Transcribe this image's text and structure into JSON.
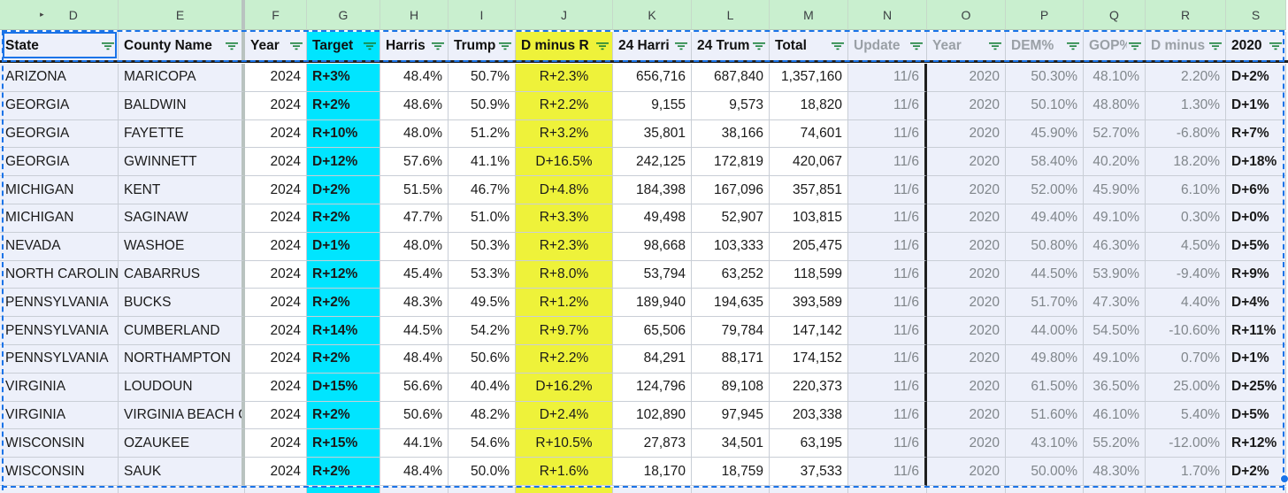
{
  "column_letters": [
    "D",
    "E",
    "F",
    "G",
    "H",
    "I",
    "J",
    "K",
    "L",
    "M",
    "N",
    "O",
    "P",
    "Q",
    "R",
    "S"
  ],
  "headers": [
    {
      "key": "state",
      "label": "State"
    },
    {
      "key": "county",
      "label": "County Name"
    },
    {
      "key": "year",
      "label": "Year"
    },
    {
      "key": "target",
      "label": "Target"
    },
    {
      "key": "harris",
      "label": "Harris"
    },
    {
      "key": "trump",
      "label": "Trump"
    },
    {
      "key": "dminusr",
      "label": "D minus R"
    },
    {
      "key": "harris24",
      "label": "24 Harri"
    },
    {
      "key": "trump24",
      "label": "24 Trum"
    },
    {
      "key": "total",
      "label": "Total"
    },
    {
      "key": "update",
      "label": "Update"
    },
    {
      "key": "year2020",
      "label": "Year"
    },
    {
      "key": "dem",
      "label": "DEM%"
    },
    {
      "key": "gop",
      "label": "GOP%"
    },
    {
      "key": "dminus2020",
      "label": "D minus"
    },
    {
      "key": "y2020",
      "label": "2020"
    }
  ],
  "rows": [
    [
      "ARIZONA",
      "MARICOPA",
      "2024",
      "R+3%",
      "48.4%",
      "50.7%",
      "R+2.3%",
      "656,716",
      "687,840",
      "1,357,160",
      "11/6",
      "2020",
      "50.30%",
      "48.10%",
      "2.20%",
      "D+2%"
    ],
    [
      "GEORGIA",
      "BALDWIN",
      "2024",
      "R+2%",
      "48.6%",
      "50.9%",
      "R+2.2%",
      "9,155",
      "9,573",
      "18,820",
      "11/6",
      "2020",
      "50.10%",
      "48.80%",
      "1.30%",
      "D+1%"
    ],
    [
      "GEORGIA",
      "FAYETTE",
      "2024",
      "R+10%",
      "48.0%",
      "51.2%",
      "R+3.2%",
      "35,801",
      "38,166",
      "74,601",
      "11/6",
      "2020",
      "45.90%",
      "52.70%",
      "-6.80%",
      "R+7%"
    ],
    [
      "GEORGIA",
      "GWINNETT",
      "2024",
      "D+12%",
      "57.6%",
      "41.1%",
      "D+16.5%",
      "242,125",
      "172,819",
      "420,067",
      "11/6",
      "2020",
      "58.40%",
      "40.20%",
      "18.20%",
      "D+18%"
    ],
    [
      "MICHIGAN",
      "KENT",
      "2024",
      "D+2%",
      "51.5%",
      "46.7%",
      "D+4.8%",
      "184,398",
      "167,096",
      "357,851",
      "11/6",
      "2020",
      "52.00%",
      "45.90%",
      "6.10%",
      "D+6%"
    ],
    [
      "MICHIGAN",
      "SAGINAW",
      "2024",
      "R+2%",
      "47.7%",
      "51.0%",
      "R+3.3%",
      "49,498",
      "52,907",
      "103,815",
      "11/6",
      "2020",
      "49.40%",
      "49.10%",
      "0.30%",
      "D+0%"
    ],
    [
      "NEVADA",
      "WASHOE",
      "2024",
      "D+1%",
      "48.0%",
      "50.3%",
      "R+2.3%",
      "98,668",
      "103,333",
      "205,475",
      "11/6",
      "2020",
      "50.80%",
      "46.30%",
      "4.50%",
      "D+5%"
    ],
    [
      "NORTH CAROLINA",
      "CABARRUS",
      "2024",
      "R+12%",
      "45.4%",
      "53.3%",
      "R+8.0%",
      "53,794",
      "63,252",
      "118,599",
      "11/6",
      "2020",
      "44.50%",
      "53.90%",
      "-9.40%",
      "R+9%"
    ],
    [
      "PENNSYLVANIA",
      "BUCKS",
      "2024",
      "R+2%",
      "48.3%",
      "49.5%",
      "R+1.2%",
      "189,940",
      "194,635",
      "393,589",
      "11/6",
      "2020",
      "51.70%",
      "47.30%",
      "4.40%",
      "D+4%"
    ],
    [
      "PENNSYLVANIA",
      "CUMBERLAND",
      "2024",
      "R+14%",
      "44.5%",
      "54.2%",
      "R+9.7%",
      "65,506",
      "79,784",
      "147,142",
      "11/6",
      "2020",
      "44.00%",
      "54.50%",
      "-10.60%",
      "R+11%"
    ],
    [
      "PENNSYLVANIA",
      "NORTHAMPTON",
      "2024",
      "R+2%",
      "48.4%",
      "50.6%",
      "R+2.2%",
      "84,291",
      "88,171",
      "174,152",
      "11/6",
      "2020",
      "49.80%",
      "49.10%",
      "0.70%",
      "D+1%"
    ],
    [
      "VIRGINIA",
      "LOUDOUN",
      "2024",
      "D+15%",
      "56.6%",
      "40.4%",
      "D+16.2%",
      "124,796",
      "89,108",
      "220,373",
      "11/6",
      "2020",
      "61.50%",
      "36.50%",
      "25.00%",
      "D+25%"
    ],
    [
      "VIRGINIA",
      "VIRGINIA BEACH CITY",
      "2024",
      "R+2%",
      "50.6%",
      "48.2%",
      "D+2.4%",
      "102,890",
      "97,945",
      "203,338",
      "11/6",
      "2020",
      "51.60%",
      "46.10%",
      "5.40%",
      "D+5%"
    ],
    [
      "WISCONSIN",
      "OZAUKEE",
      "2024",
      "R+15%",
      "44.1%",
      "54.6%",
      "R+10.5%",
      "27,873",
      "34,501",
      "63,195",
      "11/6",
      "2020",
      "43.10%",
      "55.20%",
      "-12.00%",
      "R+12%"
    ],
    [
      "WISCONSIN",
      "SAUK",
      "2024",
      "R+2%",
      "48.4%",
      "50.0%",
      "R+1.6%",
      "18,170",
      "18,759",
      "37,533",
      "11/6",
      "2020",
      "50.00%",
      "48.30%",
      "1.70%",
      "D+2%"
    ]
  ],
  "colors": {
    "column_header_bg": "#c9efcf",
    "target_bg": "#00e5ff",
    "dminusr_bg": "#eef23a",
    "header_row_bg": "#edf0fa",
    "selection": "#1a73e8"
  }
}
